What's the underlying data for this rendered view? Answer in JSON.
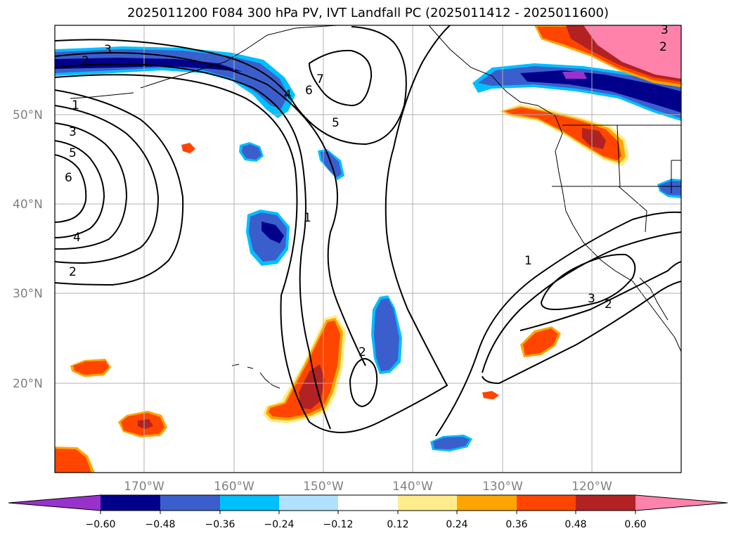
{
  "title": "2025011200 F084 300 hPa PV, IVT Landfall PC (2025011412 - 2025011600)",
  "lat_labels": [
    "50°N",
    "40°N",
    "30°N",
    "20°N"
  ],
  "lon_labels": [
    "170°W",
    "160°W",
    "150°W",
    "140°W",
    "130°W",
    "120°W"
  ],
  "colorbar": {
    "ticks": [
      "−0.60",
      "−0.48",
      "−0.36",
      "−0.24",
      "−0.12",
      "0.12",
      "0.24",
      "0.36",
      "0.48",
      "0.60"
    ],
    "colors": [
      "#9932cc",
      "#00008b",
      "#3a5fcd",
      "#00bfff",
      "#b0e2ff",
      "#ffffff",
      "#ffec8b",
      "#ffa500",
      "#ff4500",
      "#b22222",
      "#ff82ab"
    ]
  },
  "contour_labels": [
    "3",
    "2",
    "1",
    "3",
    "5",
    "6",
    "4",
    "2",
    "7",
    "6",
    "4",
    "5",
    "1",
    "2",
    "1",
    "3",
    "2",
    "3",
    "2"
  ]
}
